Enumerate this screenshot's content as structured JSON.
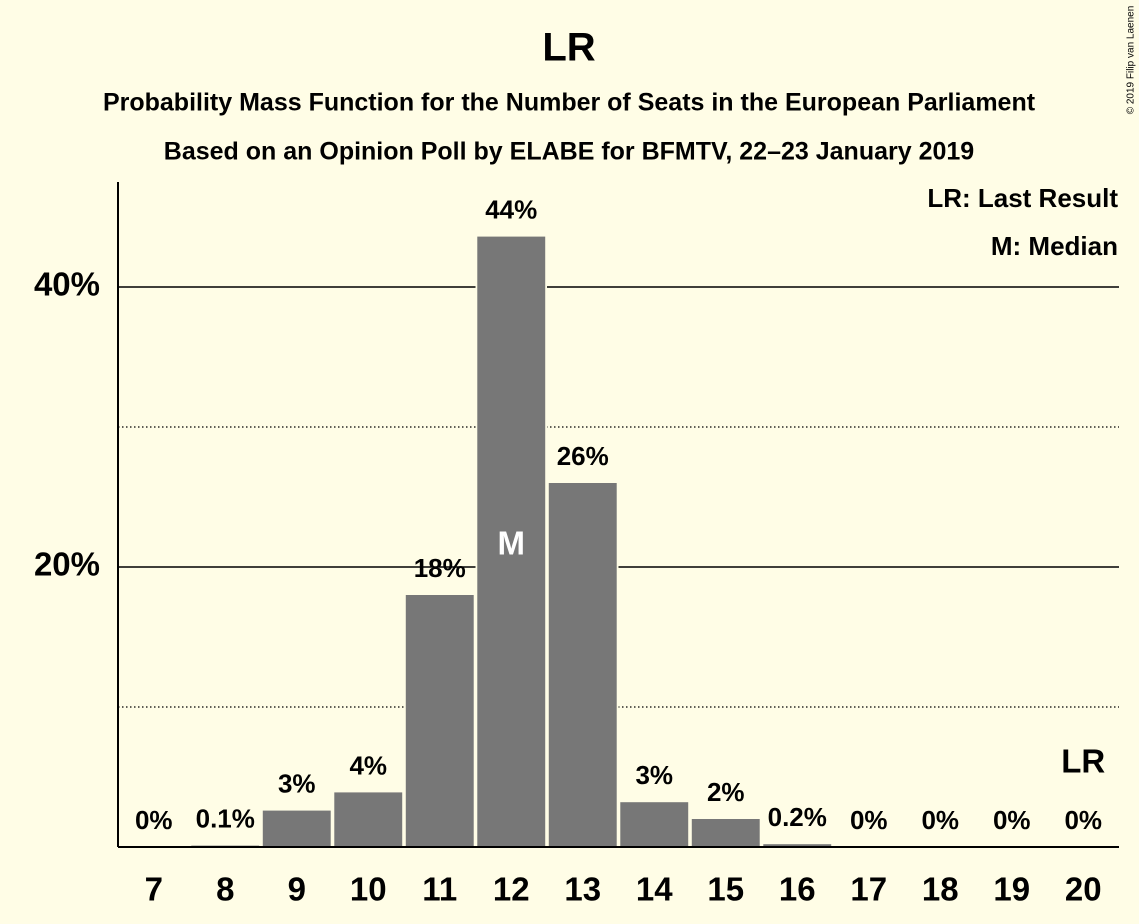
{
  "chart_data": {
    "type": "bar",
    "title": "LR",
    "subtitle": "Probability Mass Function for the Number of Seats in the European Parliament",
    "subtitle2": "Based on an Opinion Poll by ELABE for BFMTV, 22–23 January 2019",
    "copyright": "© 2019 Filip van Laenen",
    "categories": [
      "7",
      "8",
      "9",
      "10",
      "11",
      "12",
      "13",
      "14",
      "15",
      "16",
      "17",
      "18",
      "19",
      "20"
    ],
    "values": [
      0,
      0.1,
      2.6,
      3.9,
      18.0,
      43.6,
      26.0,
      3.2,
      2.0,
      0.2,
      0,
      0,
      0,
      0
    ],
    "value_labels": [
      "0%",
      "0.1%",
      "3%",
      "4%",
      "18%",
      "44%",
      "26%",
      "3%",
      "2%",
      "0.2%",
      "0%",
      "0%",
      "0%",
      "0%"
    ],
    "color": "#777777",
    "ylim": [
      0,
      47.5
    ],
    "yticks": [
      {
        "value": 20,
        "label": "20%"
      },
      {
        "value": 40,
        "label": "40%"
      }
    ],
    "minor_gridlines": [
      10,
      30
    ],
    "grid": true,
    "legend": [
      "LR: Last Result",
      "M: Median"
    ],
    "median": {
      "label": "M",
      "category": "12"
    },
    "last_result": {
      "label": "LR",
      "category": "20"
    }
  }
}
